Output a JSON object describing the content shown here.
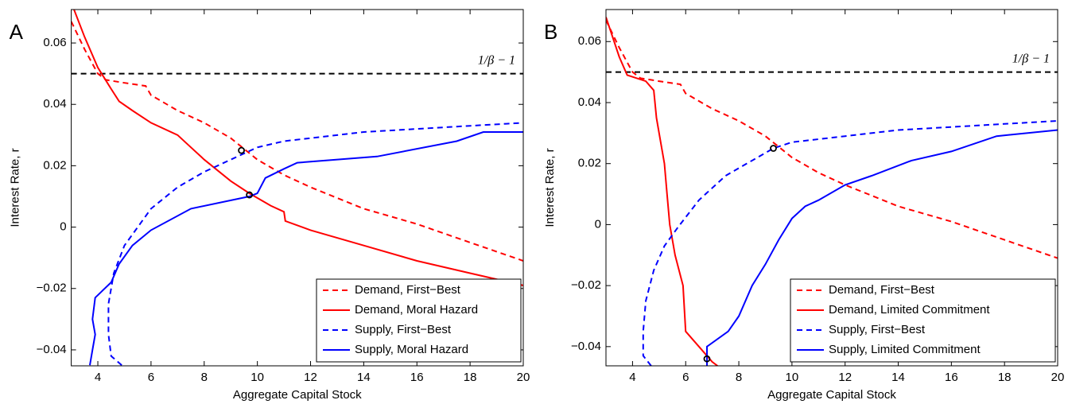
{
  "chart_data": [
    {
      "type": "line",
      "panel_label": "A",
      "xlabel": "Aggregate Capital Stock",
      "ylabel": "Interest Rate, r",
      "xlim": [
        3,
        20
      ],
      "ylim": [
        -0.0452,
        0.0709
      ],
      "xticks": [
        4,
        6,
        8,
        10,
        12,
        14,
        16,
        18,
        20
      ],
      "yticks": [
        {
          "value": -0.04,
          "label": "−0.04"
        },
        {
          "value": -0.02,
          "label": "−0.02"
        },
        0,
        0.02,
        0.04,
        0.06
      ],
      "legend": "lower right",
      "hline": {
        "value": 0.05,
        "label": "1/β − 1"
      },
      "series": [
        {
          "name": "Demand, First−Best",
          "color": "#ff0000",
          "dash": "dashed",
          "x": [
            3,
            3.5,
            4,
            4.3,
            5,
            5.8,
            6,
            6.2,
            7,
            8,
            9,
            10,
            11,
            12,
            14,
            16,
            18,
            20
          ],
          "values": [
            0.067,
            0.058,
            0.05,
            0.048,
            0.047,
            0.046,
            0.043,
            0.042,
            0.038,
            0.034,
            0.029,
            0.022,
            0.017,
            0.013,
            0.006,
            0.001,
            -0.005,
            -0.011
          ]
        },
        {
          "name": "Demand, Moral Hazard",
          "color": "#ff0000",
          "dash": "solid",
          "x": [
            3.1,
            3.5,
            4,
            4.5,
            4.8,
            5.3,
            6,
            7,
            7.5,
            8,
            9,
            9.7,
            10.5,
            11,
            11.05,
            12,
            14,
            16,
            18,
            20
          ],
          "values": [
            0.071,
            0.062,
            0.052,
            0.045,
            0.041,
            0.038,
            0.034,
            0.03,
            0.026,
            0.022,
            0.015,
            0.011,
            0.007,
            0.005,
            0.002,
            -0.001,
            -0.006,
            -0.011,
            -0.015,
            -0.019
          ]
        },
        {
          "name": "Supply, First−Best",
          "color": "#0000ff",
          "dash": "dashed",
          "x": [
            4.9,
            4.5,
            4.4,
            4.4,
            4.6,
            5,
            5.5,
            6,
            7,
            8,
            9,
            10,
            11,
            12,
            14,
            16,
            18,
            20
          ],
          "values": [
            -0.045,
            -0.042,
            -0.035,
            -0.025,
            -0.015,
            -0.006,
            0,
            0.006,
            0.013,
            0.018,
            0.022,
            0.026,
            0.028,
            0.029,
            0.031,
            0.032,
            0.033,
            0.034
          ]
        },
        {
          "name": "Supply, Moral Hazard",
          "color": "#0000ff",
          "dash": "solid",
          "x": [
            3.7,
            3.8,
            3.9,
            3.8,
            3.9,
            4.5,
            4.8,
            5.3,
            6,
            7.5,
            9.7,
            10,
            10.3,
            11,
            11.5,
            14.5,
            17.5,
            18.5,
            20
          ],
          "values": [
            -0.045,
            -0.04,
            -0.035,
            -0.03,
            -0.023,
            -0.018,
            -0.012,
            -0.006,
            -0.001,
            0.006,
            0.01,
            0.011,
            0.016,
            0.019,
            0.021,
            0.023,
            0.028,
            0.031,
            0.031
          ]
        }
      ],
      "markers": {
        "x": [
          9.4,
          9.7
        ],
        "values": [
          0.025,
          0.0105
        ]
      }
    },
    {
      "type": "line",
      "panel_label": "B",
      "xlabel": "Aggregate Capital Stock",
      "ylabel": "Interest Rate, r",
      "xlim": [
        3,
        20
      ],
      "ylim": [
        -0.0463,
        0.0705
      ],
      "xticks": [
        4,
        6,
        8,
        10,
        12,
        14,
        16,
        18,
        20
      ],
      "yticks": [
        {
          "value": -0.04,
          "label": "−0.04"
        },
        {
          "value": -0.02,
          "label": "−0.02"
        },
        0,
        0.02,
        0.04,
        0.06
      ],
      "legend": "lower right",
      "hline": {
        "value": 0.05,
        "label": "1/β − 1"
      },
      "series": [
        {
          "name": "Demand, First−Best",
          "color": "#ff0000",
          "dash": "dashed",
          "x": [
            3,
            3.5,
            4,
            4.3,
            5,
            5.8,
            6,
            6.2,
            7,
            8,
            9,
            10,
            11,
            12,
            14,
            16,
            18,
            20
          ],
          "values": [
            0.067,
            0.058,
            0.05,
            0.048,
            0.047,
            0.046,
            0.043,
            0.042,
            0.038,
            0.034,
            0.029,
            0.022,
            0.017,
            0.013,
            0.006,
            0.001,
            -0.005,
            -0.011
          ]
        },
        {
          "name": "Demand, Limited Commitment",
          "color": "#ff0000",
          "dash": "solid",
          "x": [
            3,
            3.5,
            3.8,
            4.5,
            4.8,
            4.9,
            5,
            5.2,
            5.3,
            5.4,
            5.6,
            5.9,
            6,
            6.5,
            7,
            7.2
          ],
          "values": [
            0.068,
            0.055,
            0.049,
            0.047,
            0.044,
            0.035,
            0.03,
            0.02,
            0.01,
            0,
            -0.01,
            -0.02,
            -0.035,
            -0.04,
            -0.045,
            -0.0463
          ]
        },
        {
          "name": "Supply, First−Best",
          "color": "#0000ff",
          "dash": "dashed",
          "x": [
            4.7,
            4.4,
            4.4,
            4.5,
            4.8,
            5.2,
            5.7,
            6.5,
            7.5,
            9.3,
            10,
            11,
            12,
            14,
            16,
            18,
            20
          ],
          "values": [
            -0.0463,
            -0.043,
            -0.035,
            -0.025,
            -0.015,
            -0.007,
            -0.001,
            0.008,
            0.016,
            0.025,
            0.027,
            0.028,
            0.029,
            0.031,
            0.032,
            0.033,
            0.034
          ]
        },
        {
          "name": "Supply, Limited Commitment",
          "color": "#0000ff",
          "dash": "solid",
          "x": [
            6.8,
            6.8,
            7.6,
            8,
            8.5,
            9,
            9.5,
            10,
            10.5,
            11,
            12,
            13,
            14.5,
            16,
            17.7,
            20
          ],
          "values": [
            -0.0463,
            -0.04,
            -0.035,
            -0.03,
            -0.02,
            -0.013,
            -0.005,
            0.002,
            0.006,
            0.008,
            0.013,
            0.016,
            0.021,
            0.024,
            0.029,
            0.031
          ]
        }
      ],
      "markers": {
        "x": [
          9.3,
          6.8
        ],
        "values": [
          0.025,
          -0.044
        ]
      }
    }
  ]
}
